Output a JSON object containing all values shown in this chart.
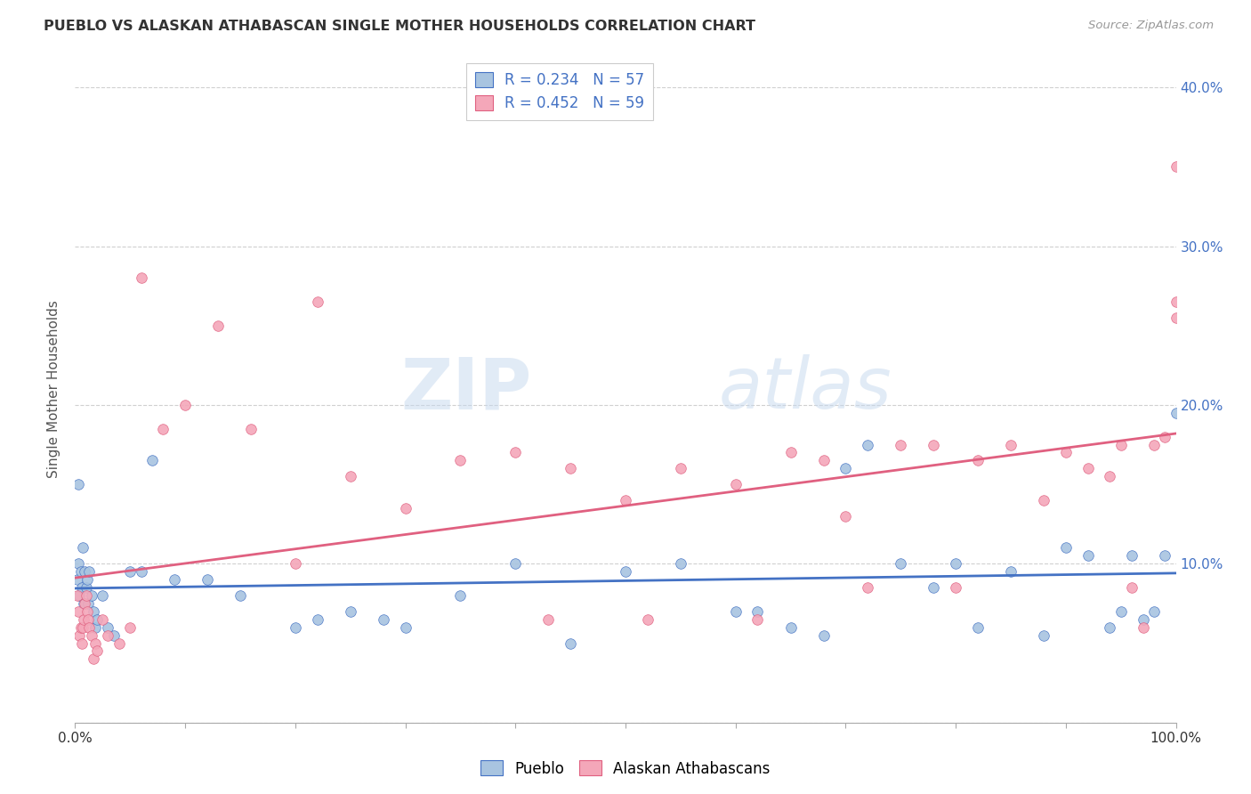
{
  "title": "PUEBLO VS ALASKAN ATHABASCAN SINGLE MOTHER HOUSEHOLDS CORRELATION CHART",
  "source": "Source: ZipAtlas.com",
  "ylabel": "Single Mother Households",
  "legend_labels": [
    "Pueblo",
    "Alaskan Athabascans"
  ],
  "r_pueblo": 0.234,
  "n_pueblo": 57,
  "r_athabascan": 0.452,
  "n_athabascan": 59,
  "pueblo_color": "#a8c4e0",
  "athabascan_color": "#f4a7b9",
  "pueblo_line_color": "#4472c4",
  "athabascan_line_color": "#e06080",
  "pueblo_x": [
    0.002,
    0.003,
    0.004,
    0.005,
    0.006,
    0.007,
    0.008,
    0.009,
    0.01,
    0.011,
    0.012,
    0.013,
    0.015,
    0.017,
    0.018,
    0.02,
    0.025,
    0.03,
    0.035,
    0.05,
    0.06,
    0.07,
    0.09,
    0.12,
    0.15,
    0.2,
    0.22,
    0.25,
    0.28,
    0.3,
    0.35,
    0.4,
    0.45,
    0.5,
    0.55,
    0.6,
    0.62,
    0.65,
    0.68,
    0.7,
    0.72,
    0.75,
    0.78,
    0.8,
    0.82,
    0.85,
    0.88,
    0.9,
    0.92,
    0.94,
    0.95,
    0.96,
    0.97,
    0.98,
    0.99,
    1.0,
    0.003
  ],
  "pueblo_y": [
    0.09,
    0.1,
    0.08,
    0.095,
    0.085,
    0.11,
    0.075,
    0.095,
    0.085,
    0.09,
    0.075,
    0.095,
    0.08,
    0.07,
    0.06,
    0.065,
    0.08,
    0.06,
    0.055,
    0.095,
    0.095,
    0.165,
    0.09,
    0.09,
    0.08,
    0.06,
    0.065,
    0.07,
    0.065,
    0.06,
    0.08,
    0.1,
    0.05,
    0.095,
    0.1,
    0.07,
    0.07,
    0.06,
    0.055,
    0.16,
    0.175,
    0.1,
    0.085,
    0.1,
    0.06,
    0.095,
    0.055,
    0.11,
    0.105,
    0.06,
    0.07,
    0.105,
    0.065,
    0.07,
    0.105,
    0.195,
    0.15
  ],
  "athabascan_x": [
    0.002,
    0.003,
    0.004,
    0.005,
    0.006,
    0.007,
    0.008,
    0.009,
    0.01,
    0.011,
    0.012,
    0.013,
    0.015,
    0.017,
    0.018,
    0.02,
    0.025,
    0.03,
    0.04,
    0.05,
    0.06,
    0.08,
    0.1,
    0.13,
    0.16,
    0.2,
    0.25,
    0.3,
    0.35,
    0.4,
    0.43,
    0.45,
    0.5,
    0.52,
    0.55,
    0.6,
    0.62,
    0.65,
    0.68,
    0.7,
    0.72,
    0.75,
    0.78,
    0.8,
    0.82,
    0.85,
    0.88,
    0.9,
    0.92,
    0.94,
    0.95,
    0.96,
    0.97,
    0.98,
    0.99,
    1.0,
    1.0,
    1.0,
    0.22
  ],
  "athabascan_y": [
    0.08,
    0.07,
    0.055,
    0.06,
    0.05,
    0.06,
    0.065,
    0.075,
    0.08,
    0.07,
    0.065,
    0.06,
    0.055,
    0.04,
    0.05,
    0.045,
    0.065,
    0.055,
    0.05,
    0.06,
    0.28,
    0.185,
    0.2,
    0.25,
    0.185,
    0.1,
    0.155,
    0.135,
    0.165,
    0.17,
    0.065,
    0.16,
    0.14,
    0.065,
    0.16,
    0.15,
    0.065,
    0.17,
    0.165,
    0.13,
    0.085,
    0.175,
    0.175,
    0.085,
    0.165,
    0.175,
    0.14,
    0.17,
    0.16,
    0.155,
    0.175,
    0.085,
    0.06,
    0.175,
    0.18,
    0.35,
    0.265,
    0.255,
    0.265
  ],
  "xlim": [
    0.0,
    1.0
  ],
  "ylim": [
    0.0,
    0.42
  ],
  "xticks": [
    0.0,
    0.1,
    0.2,
    0.3,
    0.4,
    0.5,
    0.6,
    0.7,
    0.8,
    0.9,
    1.0
  ],
  "xtick_labels": [
    "0.0%",
    "",
    "",
    "",
    "",
    "",
    "",
    "",
    "",
    "",
    "100.0%"
  ],
  "yticks": [
    0.0,
    0.1,
    0.2,
    0.3,
    0.4
  ],
  "ytick_labels_right": [
    "",
    "10.0%",
    "20.0%",
    "30.0%",
    "40.0%"
  ],
  "grid_color": "#d0d0d0",
  "background_color": "#ffffff",
  "watermark_zip": "ZIP",
  "watermark_atlas": "atlas",
  "marker_size": 70
}
